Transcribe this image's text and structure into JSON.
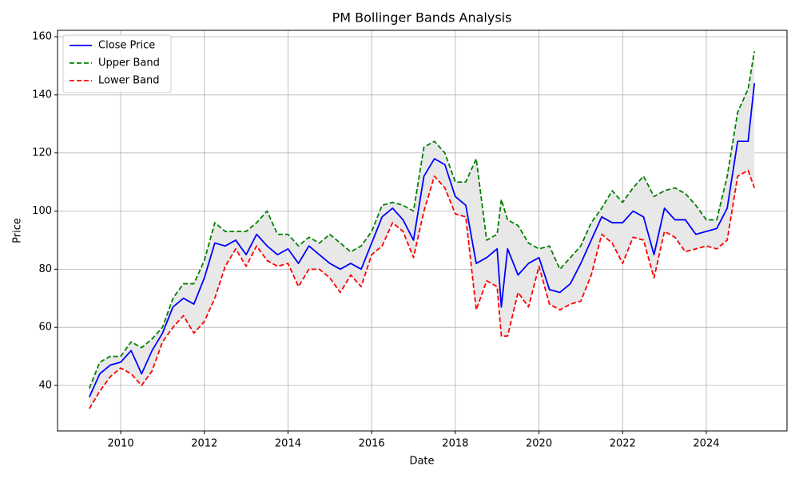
{
  "chart_data": {
    "type": "line",
    "title": "PM Bollinger Bands Analysis",
    "x_label": "Date",
    "y_label": "Price",
    "x": [
      2009.25,
      2009.5,
      2009.75,
      2010.0,
      2010.25,
      2010.5,
      2010.75,
      2011.0,
      2011.25,
      2011.5,
      2011.75,
      2012.0,
      2012.25,
      2012.5,
      2012.75,
      2013.0,
      2013.25,
      2013.5,
      2013.75,
      2014.0,
      2014.25,
      2014.5,
      2014.75,
      2015.0,
      2015.25,
      2015.5,
      2015.75,
      2016.0,
      2016.25,
      2016.5,
      2016.75,
      2017.0,
      2017.25,
      2017.5,
      2017.75,
      2018.0,
      2018.25,
      2018.5,
      2018.75,
      2019.0,
      2019.1,
      2019.25,
      2019.5,
      2019.75,
      2020.0,
      2020.25,
      2020.5,
      2020.75,
      2021.0,
      2021.25,
      2021.5,
      2021.75,
      2022.0,
      2022.25,
      2022.5,
      2022.75,
      2023.0,
      2023.25,
      2023.5,
      2023.75,
      2024.0,
      2024.25,
      2024.5,
      2024.75,
      2025.0,
      2025.15
    ],
    "series": [
      {
        "name": "Close Price",
        "color": "#0000ff",
        "dashed": false,
        "values": [
          36,
          44,
          47,
          48,
          52,
          44,
          52,
          58,
          67,
          70,
          68,
          77,
          89,
          88,
          90,
          85,
          92,
          88,
          85,
          87,
          82,
          88,
          85,
          82,
          80,
          82,
          80,
          89,
          98,
          101,
          97,
          90,
          112,
          118,
          116,
          105,
          102,
          82,
          84,
          87,
          67,
          87,
          78,
          82,
          84,
          73,
          72,
          75,
          82,
          90,
          98,
          96,
          96,
          100,
          98,
          85,
          101,
          97,
          97,
          92,
          93,
          94,
          101,
          124,
          124,
          144
        ]
      },
      {
        "name": "Upper Band",
        "color": "#008000",
        "dashed": true,
        "values": [
          39,
          48,
          50,
          50,
          55,
          53,
          56,
          60,
          70,
          75,
          75,
          83,
          96,
          93,
          93,
          93,
          96,
          100,
          92,
          92,
          88,
          91,
          89,
          92,
          89,
          86,
          88,
          93,
          102,
          103,
          102,
          100,
          122,
          124,
          120,
          110,
          110,
          118,
          90,
          92,
          104,
          97,
          95,
          89,
          87,
          88,
          80,
          84,
          88,
          96,
          101,
          107,
          103,
          108,
          112,
          105,
          107,
          108,
          106,
          102,
          97,
          97,
          112,
          134,
          142,
          155
        ]
      },
      {
        "name": "Lower Band",
        "color": "#ff0000",
        "dashed": true,
        "values": [
          32,
          38,
          43,
          46,
          44,
          40,
          45,
          55,
          60,
          64,
          58,
          62,
          70,
          81,
          87,
          81,
          88,
          83,
          81,
          82,
          74,
          80,
          80,
          77,
          72,
          78,
          74,
          85,
          88,
          96,
          93,
          84,
          100,
          112,
          108,
          99,
          98,
          66,
          76,
          74,
          57,
          57,
          72,
          67,
          81,
          68,
          66,
          68,
          69,
          78,
          92,
          89,
          82,
          91,
          90,
          77,
          93,
          91,
          86,
          87,
          88,
          87,
          90,
          112,
          114,
          108
        ]
      }
    ],
    "band_fill": "#e8e8e8",
    "xlim": [
      2008.49,
      2025.93
    ],
    "xticks": [
      2010,
      2012,
      2014,
      2016,
      2018,
      2020,
      2022,
      2024
    ],
    "ylim": [
      24.35,
      162.2
    ],
    "yticks": [
      40,
      60,
      80,
      100,
      120,
      140,
      160
    ],
    "grid": true,
    "legend_position": "upper-left"
  }
}
